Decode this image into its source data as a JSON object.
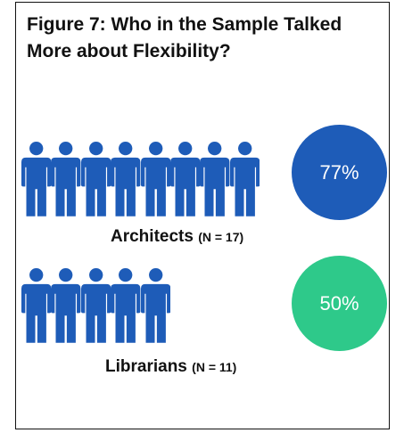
{
  "title": "Figure 7: Who in the Sample Talked More about Flexibility?",
  "chart_data": {
    "type": "pictograph",
    "title": "Figure 7: Who in the Sample Talked More about Flexibility?",
    "series": [
      {
        "name": "Architects",
        "n_label": "(N = 17)",
        "n": 17,
        "icon_count": 8,
        "value": 77,
        "value_label": "77%",
        "color": "#1e5cb8"
      },
      {
        "name": "Librarians",
        "n_label": "(N = 11)",
        "n": 11,
        "icon_count": 5,
        "value": 50,
        "value_label": "50%",
        "color": "#2ec98a"
      }
    ]
  },
  "icon": "person-icon",
  "icon_color": "#1e5cb8"
}
